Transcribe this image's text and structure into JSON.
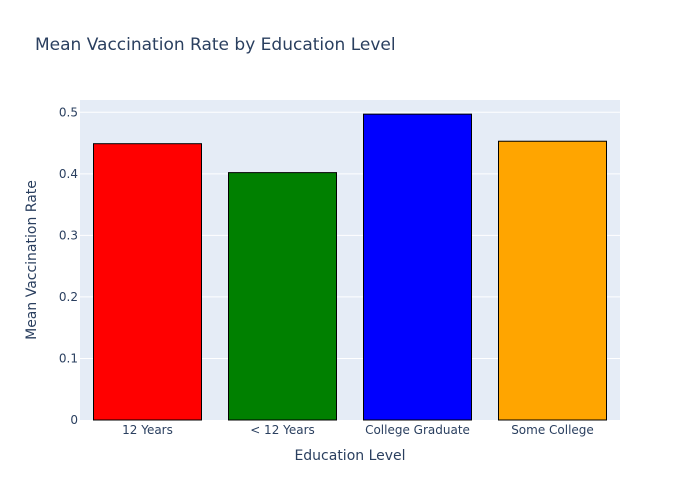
{
  "chart_data": {
    "type": "bar",
    "title": "Mean Vaccination Rate by Education Level",
    "xlabel": "Education Level",
    "ylabel": "Mean Vaccination Rate",
    "categories": [
      "12 Years",
      "< 12 Years",
      "College Graduate",
      "Some College"
    ],
    "values": [
      0.449,
      0.402,
      0.497,
      0.453
    ],
    "colors": [
      "#ff0000",
      "#008000",
      "#0000ff",
      "#ffa500"
    ],
    "bar_outline_color": "#000000",
    "plot_background": "#e5ecf6",
    "gridline_color": "#ffffff",
    "ylim": [
      0,
      0.52
    ],
    "yticks": [
      0,
      0.1,
      0.2,
      0.3,
      0.4,
      0.5
    ],
    "ytick_labels": [
      "0",
      "0.1",
      "0.2",
      "0.3",
      "0.4",
      "0.5"
    ],
    "grid": true,
    "legend": "none"
  }
}
